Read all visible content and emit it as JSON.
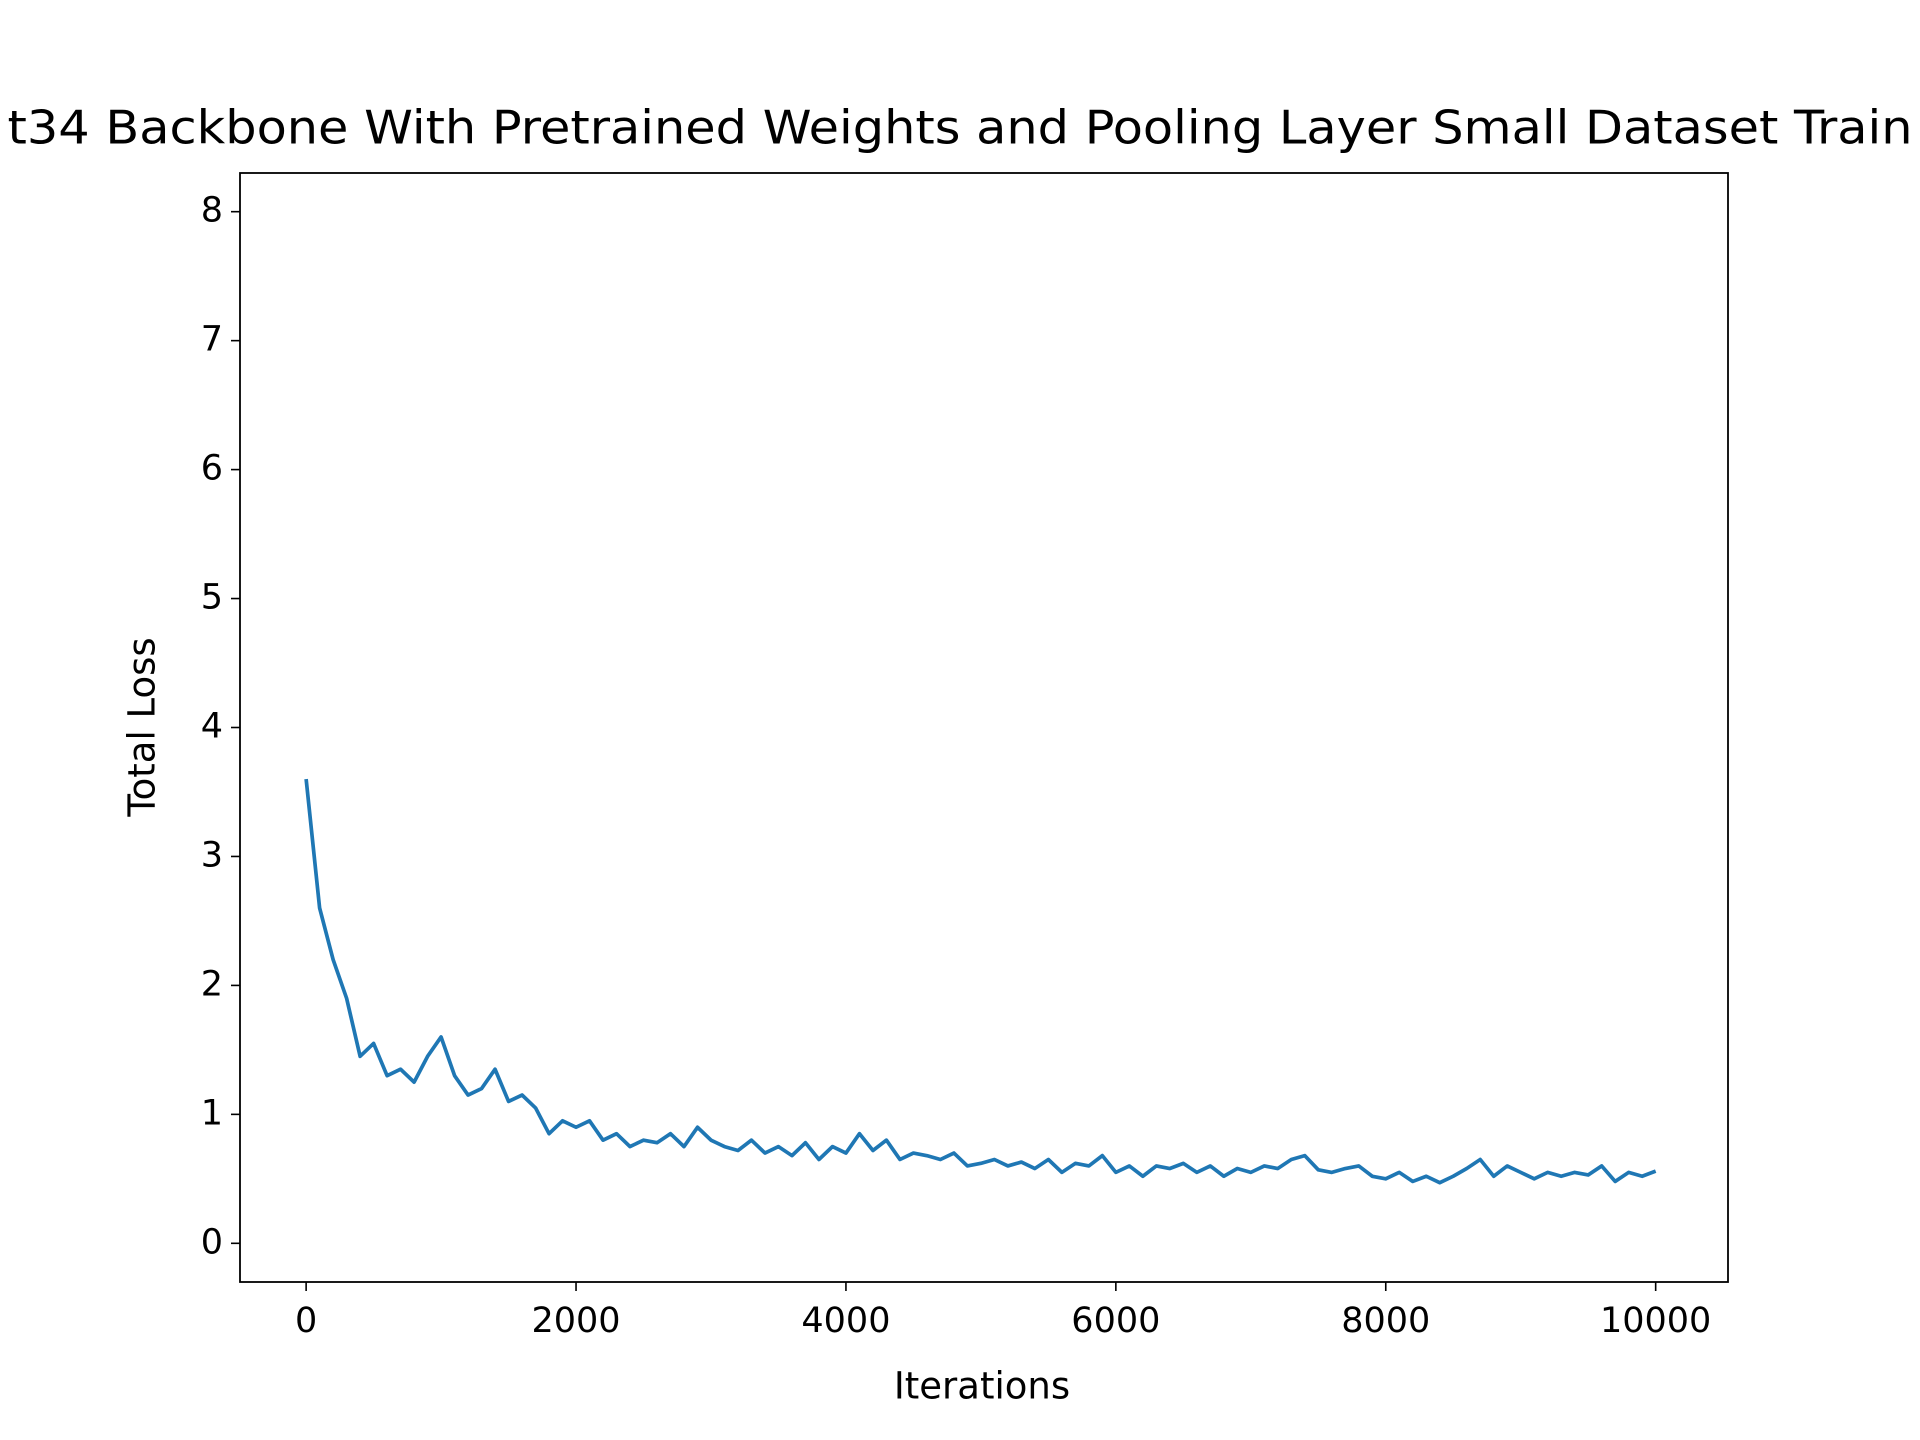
{
  "chart_data": {
    "type": "line",
    "title": "t34 Backbone With Pretrained Weights and Pooling Layer Small Dataset Train",
    "x_label": "Iterations",
    "y_label": "Total Loss",
    "x": [
      0,
      100,
      200,
      300,
      400,
      500,
      600,
      700,
      800,
      900,
      1000,
      1100,
      1200,
      1300,
      1400,
      1500,
      1600,
      1700,
      1800,
      1900,
      2000,
      2100,
      2200,
      2300,
      2400,
      2500,
      2600,
      2700,
      2800,
      2900,
      3000,
      3100,
      3200,
      3300,
      3400,
      3500,
      3600,
      3700,
      3800,
      3900,
      4000,
      4100,
      4200,
      4300,
      4400,
      4500,
      4600,
      4700,
      4800,
      4900,
      5000,
      5100,
      5200,
      5300,
      5400,
      5500,
      5600,
      5700,
      5800,
      5900,
      6000,
      6100,
      6200,
      6300,
      6400,
      6500,
      6600,
      6700,
      6800,
      6900,
      7000,
      7100,
      7200,
      7300,
      7400,
      7500,
      7600,
      7700,
      7800,
      7900,
      8000,
      8100,
      8200,
      8300,
      8400,
      8500,
      8600,
      8700,
      8800,
      8900,
      9000,
      9100,
      9200,
      9300,
      9400,
      9500,
      9600,
      9700,
      9800,
      9900,
      10000
    ],
    "series": [
      {
        "name": "Total Loss",
        "color": "#1f77b4",
        "values": [
          3.6,
          2.6,
          2.2,
          1.9,
          1.45,
          1.55,
          1.3,
          1.35,
          1.25,
          1.45,
          1.6,
          1.3,
          1.15,
          1.2,
          1.35,
          1.1,
          1.15,
          1.05,
          0.85,
          0.95,
          0.9,
          0.95,
          0.8,
          0.85,
          0.75,
          0.8,
          0.78,
          0.85,
          0.75,
          0.9,
          0.8,
          0.75,
          0.72,
          0.8,
          0.7,
          0.75,
          0.68,
          0.78,
          0.65,
          0.75,
          0.7,
          0.85,
          0.72,
          0.8,
          0.65,
          0.7,
          0.68,
          0.65,
          0.7,
          0.6,
          0.62,
          0.65,
          0.6,
          0.63,
          0.58,
          0.65,
          0.55,
          0.62,
          0.6,
          0.68,
          0.55,
          0.6,
          0.52,
          0.6,
          0.58,
          0.62,
          0.55,
          0.6,
          0.52,
          0.58,
          0.55,
          0.6,
          0.58,
          0.65,
          0.68,
          0.57,
          0.55,
          0.58,
          0.6,
          0.52,
          0.5,
          0.55,
          0.48,
          0.52,
          0.47,
          0.52,
          0.58,
          0.65,
          0.52,
          0.6,
          0.55,
          0.5,
          0.55,
          0.52,
          0.55,
          0.53,
          0.6,
          0.48,
          0.55,
          0.52,
          0.56
        ]
      }
    ],
    "xlim": [
      -490,
      10536
    ],
    "xticks": [
      0,
      2000,
      4000,
      6000,
      8000,
      10000
    ],
    "ylim": [
      -0.3,
      8.3
    ],
    "yticks": [
      0,
      1,
      2,
      3,
      4,
      5,
      6,
      7,
      8
    ],
    "grid": false
  }
}
